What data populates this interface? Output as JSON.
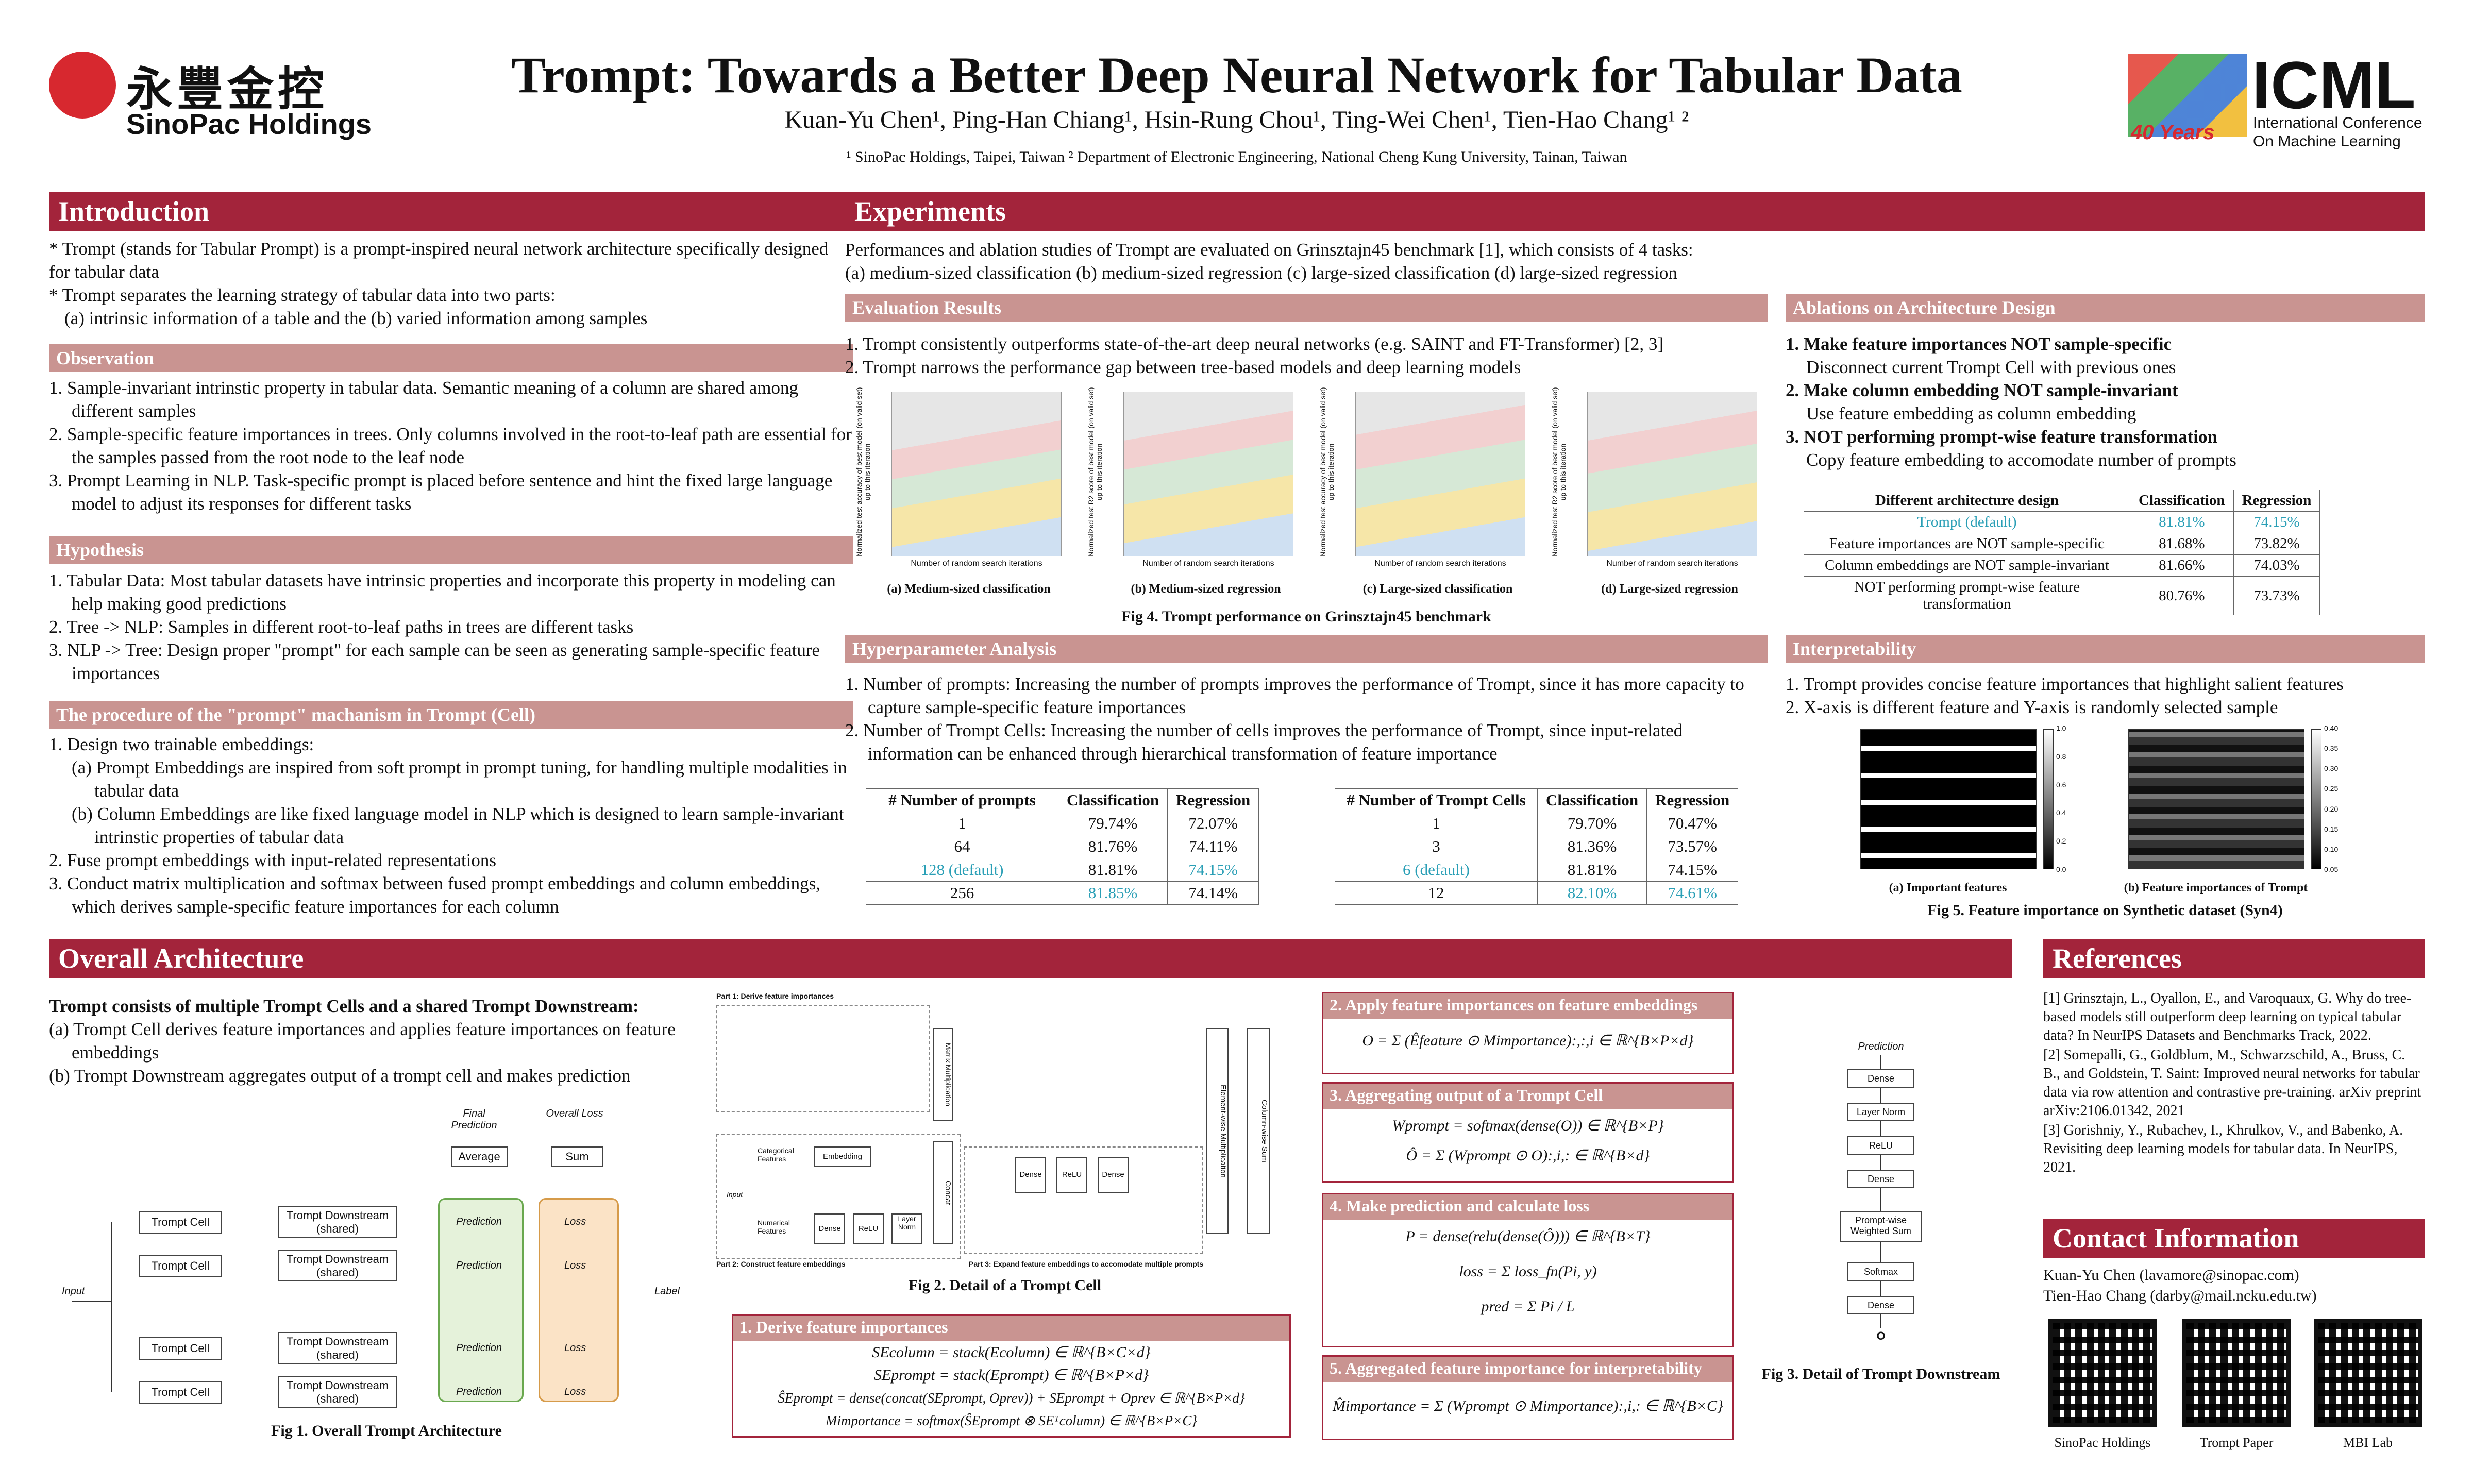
{
  "header": {
    "logo_cn": "永豐金控",
    "logo_en": "SinoPac Holdings",
    "title": "Trompt: Towards a Better Deep Neural Network for Tabular Data",
    "authors": "Kuan-Yu Chen¹, Ping-Han Chiang¹, Hsin-Rung Chou¹, Ting-Wei Chen¹, Tien-Hao Chang¹ ²",
    "affiliations": "¹ SinoPac Holdings, Taipei, Taiwan ² Department of Electronic Engineering, National Cheng Kung University, Tainan, Taiwan",
    "icml": "ICML",
    "icml_years": "40 Years",
    "icml_line1": "International Conference",
    "icml_line2": "On Machine Learning"
  },
  "intro": {
    "title": "Introduction",
    "p1": "* Trompt (stands for Tabular Prompt) is a prompt-inspired neural network architecture specifically designed for tabular data",
    "p2": "* Trompt separates the learning strategy of tabular data into two parts:",
    "p3": "(a) intrinsic information of a table and the (b) varied information among samples"
  },
  "observation": {
    "title": "Observation",
    "items": [
      "1. Sample-invariant intrinstic property in tabular data. Semantic meaning of a column are shared among different samples",
      "2. Sample-specific feature importances in trees. Only columns involved in the root-to-leaf path are essential for the samples passed from the root node to the leaf node",
      "3. Prompt Learning in NLP. Task-specific prompt is placed before sentence and hint the fixed large language model to adjust its responses for different tasks"
    ]
  },
  "hypothesis": {
    "title": "Hypothesis",
    "items": [
      "1. Tabular Data: Most tabular datasets have intrinsic properties and incorporate this property in modeling can help making good predictions",
      "2. Tree -> NLP: Samples in different root-to-leaf paths in trees are different tasks",
      "3. NLP -> Tree: Design proper \"prompt\" for each sample can be seen as generating sample-specific feature importances"
    ]
  },
  "procedure": {
    "title": "The procedure of the \"prompt\" machanism in Trompt (Cell)",
    "items": [
      "1. Design two trainable embeddings:",
      "(a) Prompt Embeddings are inspired from soft prompt in prompt tuning, for handling multiple modalities in tabular data",
      "(b) Column Embeddings are like fixed language model in NLP which is designed to learn sample-invariant intrinstic properties of tabular data",
      "2. Fuse prompt embeddings with input-related representations",
      "3. Conduct matrix multiplication and softmax between fused prompt embeddings and column embeddings, which derives sample-specific feature importances for each column"
    ]
  },
  "experiments": {
    "title": "Experiments",
    "line1": "Performances and ablation studies of Trompt are evaluated on Grinsztajn45 benchmark [1], which consists of 4 tasks:",
    "line2": "(a) medium-sized classification (b) medium-sized regression (c) large-sized classification (d) large-sized regression"
  },
  "evaluation": {
    "title": "Evaluation Results",
    "items": [
      "1. Trompt consistently outperforms state-of-the-art deep neural networks (e.g. SAINT and FT-Transformer) [2, 3]",
      "2. Trompt narrows the performance gap between tree-based models and deep learning models"
    ],
    "xlabel": "Number of random search iterations",
    "ylabel_cls": "Normalized test accuracy of best model (on valid set) up to this iteration",
    "ylabel_reg": "Normalized test R2 score of best model (on valid set) up to this iteration",
    "subcaps": [
      "(a) Medium-sized classification",
      "(b) Medium-sized regression",
      "(c) Large-sized classification",
      "(d) Large-sized regression"
    ],
    "caption": "Fig 4. Trompt performance on Grinsztajn45 benchmark"
  },
  "ablations": {
    "title": "Ablations on Architecture Design",
    "items": [
      {
        "head": "1. Make feature importances NOT sample-specific",
        "body": "Disconnect current Trompt Cell with previous ones"
      },
      {
        "head": "2. Make column embedding NOT sample-invariant",
        "body": "Use feature embedding as column embedding"
      },
      {
        "head": "3. NOT performing prompt-wise feature transformation",
        "body": "Copy feature embedding to accomodate number of prompts"
      }
    ],
    "table": {
      "headers": [
        "Different architecture design",
        "Classification",
        "Regression"
      ],
      "rows": [
        [
          "Trompt (default)",
          "81.81%",
          "74.15%"
        ],
        [
          "Feature importances are NOT sample-specific",
          "81.68%",
          "73.82%"
        ],
        [
          "Column embeddings are NOT sample-invariant",
          "81.66%",
          "74.03%"
        ],
        [
          "NOT performing prompt-wise feature transformation",
          "80.76%",
          "73.73%"
        ]
      ]
    }
  },
  "hyper": {
    "title": "Hyperparameter Analysis",
    "items": [
      "1. Number of prompts: Increasing the number of prompts improves the performance of Trompt, since it has more capacity to capture sample-specific feature importances",
      "2. Number of Trompt Cells: Increasing the number of cells improves the performance of Trompt, since input-related information can be enhanced through hierarchical transformation of feature importance"
    ],
    "table1": {
      "headers": [
        "# Number of prompts",
        "Classification",
        "Regression"
      ],
      "rows": [
        [
          "1",
          "79.74%",
          "72.07%"
        ],
        [
          "64",
          "81.76%",
          "74.11%"
        ],
        [
          "128 (default)",
          "81.81%",
          "74.15%"
        ],
        [
          "256",
          "81.85%",
          "74.14%"
        ]
      ]
    },
    "table2": {
      "headers": [
        "# Number of Trompt Cells",
        "Classification",
        "Regression"
      ],
      "rows": [
        [
          "1",
          "79.70%",
          "70.47%"
        ],
        [
          "3",
          "81.36%",
          "73.57%"
        ],
        [
          "6 (default)",
          "81.81%",
          "74.15%"
        ],
        [
          "12",
          "82.10%",
          "74.61%"
        ]
      ]
    }
  },
  "interp": {
    "title": "Interpretability",
    "items": [
      "1. Trompt provides concise feature importances that highlight salient features",
      "2. X-axis is different feature and Y-axis is randomly selected sample"
    ],
    "cap_a": "(a) Important features",
    "cap_b": "(b) Feature importances of Trompt",
    "caption": "Fig 5. Feature importance on Synthetic dataset (Syn4)",
    "scale_a": [
      "1.0",
      "0.8",
      "0.6",
      "0.4",
      "0.2",
      "0.0"
    ],
    "scale_b": [
      "0.40",
      "0.35",
      "0.30",
      "0.25",
      "0.20",
      "0.15",
      "0.10",
      "0.05"
    ]
  },
  "overall": {
    "title": "Overall Architecture",
    "lead": "Trompt consists of multiple Trompt Cells and a shared Trompt Downstream:",
    "a": "(a) Trompt Cell derives feature importances and applies feature importances on feature embeddings",
    "b": "(b) Trompt Downstream aggregates output of a trompt cell and makes prediction",
    "fig1": {
      "cell": "Trompt Cell",
      "down": "Trompt Downstream (shared)",
      "input": "Input",
      "label": "Label",
      "final": "Final Prediction",
      "overall": "Overall Loss",
      "average": "Average",
      "sum": "Sum",
      "pred": "Prediction",
      "loss": "Loss",
      "caption": "Fig 1. Overall Trompt Architecture"
    },
    "fig2": {
      "part1": "Part 1: Derive feature importances",
      "part2": "Part 2: Construct feature embeddings",
      "part3": "Part 3: Expand feature embeddings to accomodate multiple prompts",
      "caption": "Fig 2. Detail of a Trompt Cell",
      "matmul": "Matrix Multiplication",
      "elementwise": "Element-wise Multiplication",
      "colsum": "Column-wise Sum",
      "embedding": "Embedding",
      "concat": "Concat",
      "dense": "Dense",
      "relu": "ReLU",
      "layernorm": "Layer Norm",
      "input": "Input",
      "categorical": "Categorical Features",
      "numerical": "Numerical Features"
    },
    "fig3": {
      "prediction": "Prediction",
      "blocks": [
        "Dense",
        "Layer Norm",
        "ReLU",
        "Dense",
        "Prompt-wise Weighted Sum",
        "Softmax",
        "Dense"
      ],
      "o": "O",
      "caption": "Fig 3. Detail of Trompt Downstream"
    },
    "panels": {
      "p1": "1. Derive feature importances",
      "p2": "2. Apply feature importances on feature embeddings",
      "p3": "3. Aggregating output of a Trompt Cell",
      "p4": "4. Make prediction and calculate loss",
      "p5": "5. Aggregated feature importance for interpretability"
    },
    "eqs": {
      "e1": [
        "SEcolumn = stack(Ecolumn) ∈ ℝ^{B×C×d}",
        "SEprompt = stack(Eprompt) ∈ ℝ^{B×P×d}",
        "ŜEprompt = dense(concat(SEprompt, Oprev)) + SEprompt + Oprev ∈ ℝ^{B×P×d}",
        "Mimportance = softmax(ŜEprompt ⊗ SEᵀcolumn) ∈ ℝ^{B×P×C}"
      ],
      "e2": [
        "O = Σ (Êfeature ⊙ Mimportance):,:,i ∈ ℝ^{B×P×d}"
      ],
      "e3": [
        "Wprompt = softmax(dense(O)) ∈ ℝ^{B×P}",
        "Ô = Σ (Wprompt ⊙ O):,i,: ∈ ℝ^{B×d}"
      ],
      "e4": [
        "P = dense(relu(dense(Ô))) ∈ ℝ^{B×T}",
        "loss = Σ loss_fn(Pi, y)",
        "pred = Σ Pi / L"
      ],
      "e5": [
        "M̂importance = Σ (Wprompt ⊙ Mimportance):,i,: ∈ ℝ^{B×C}"
      ]
    }
  },
  "references": {
    "title": "References",
    "items": [
      "[1] Grinsztajn, L., Oyallon, E., and Varoquaux, G. Why do tree-based models still outperform deep learning on typical tabular data? In NeurIPS Datasets and Benchmarks Track, 2022.",
      "[2] Somepalli, G., Goldblum, M., Schwarzschild, A., Bruss, C. B., and Goldstein, T. Saint: Improved neural networks for tabular data via row attention and contrastive pre-training. arXiv preprint arXiv:2106.01342, 2021",
      "[3] Gorishniy, Y., Rubachev, I., Khrulkov, V., and Babenko, A. Revisiting deep learning models for tabular data. In NeurIPS, 2021."
    ]
  },
  "contact": {
    "title": "Contact Information",
    "lines": [
      "Kuan-Yu Chen (lavamore@sinopac.com)",
      "Tien-Hao Chang (darby@mail.ncku.edu.tw)"
    ],
    "qr_labels": [
      "SinoPac Holdings",
      "Trompt Paper",
      "MBI Lab"
    ]
  },
  "colors": {
    "accent": "#a3243b",
    "subheader": "#c99491",
    "teal": "#2a9fb6"
  }
}
